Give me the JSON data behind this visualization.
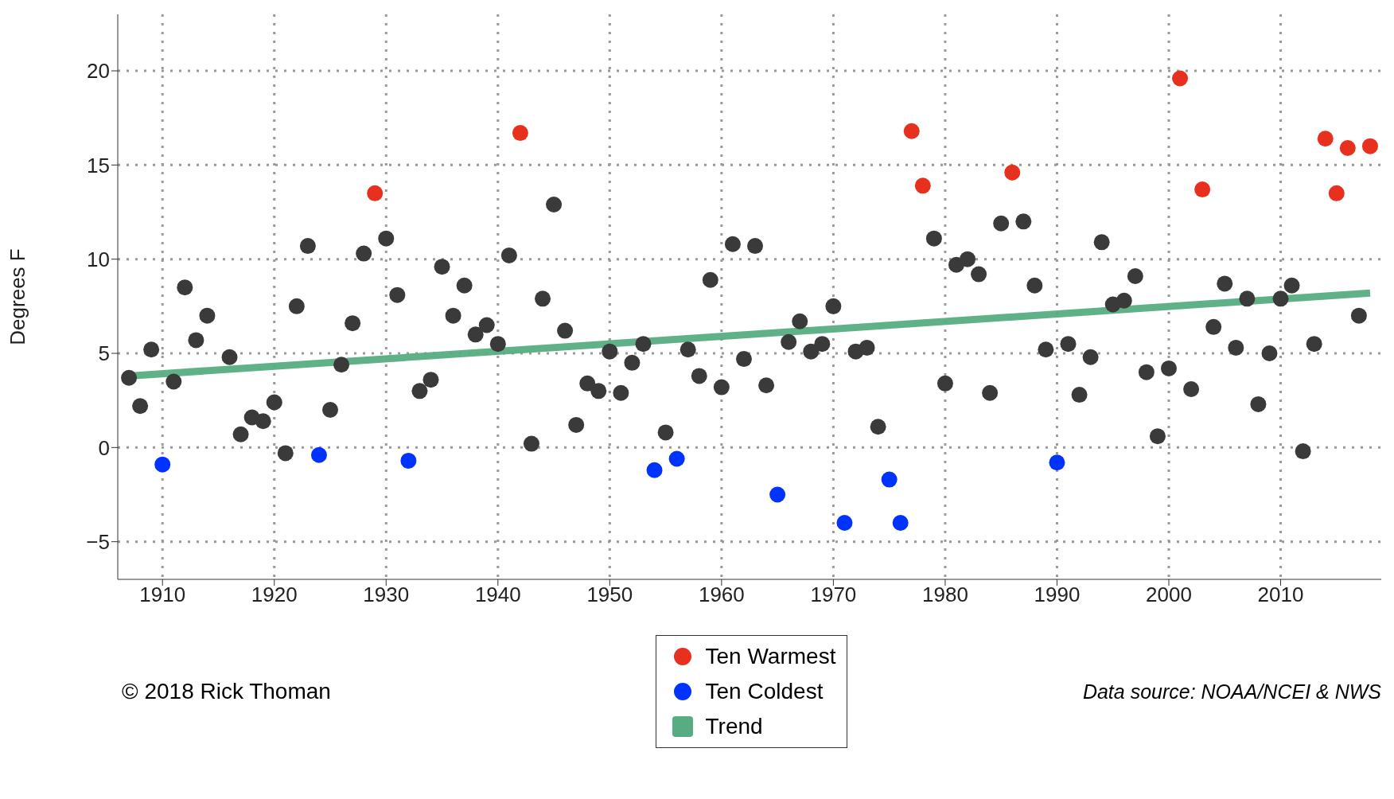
{
  "chart_data": {
    "type": "scatter",
    "ylabel": "Degrees F",
    "xlim": [
      1906,
      2019
    ],
    "xticks": [
      1910,
      1920,
      1930,
      1940,
      1950,
      1960,
      1970,
      1980,
      1990,
      2000,
      2010
    ],
    "ylim": [
      -7,
      23
    ],
    "yticks": [
      -5,
      0,
      5,
      10,
      15,
      20
    ],
    "grid": true,
    "legend": "bottom",
    "marker": "circle",
    "annotations": [
      "© 2018 Rick Thoman",
      "Data source: NOAA/NCEI & NWS"
    ],
    "series": [
      {
        "color": "#3a3a3a",
        "x": [
          1907,
          1908,
          1909,
          1911,
          1912,
          1913,
          1914,
          1916,
          1917,
          1918,
          1919,
          1920,
          1921,
          1922,
          1923,
          1925,
          1926,
          1927,
          1928,
          1930,
          1931,
          1933,
          1934,
          1935,
          1936,
          1937,
          1938,
          1939,
          1940,
          1941,
          1943,
          1944,
          1945,
          1946,
          1947,
          1948,
          1949,
          1950,
          1951,
          1952,
          1953,
          1955,
          1957,
          1958,
          1959,
          1960,
          1961,
          1962,
          1963,
          1964,
          1966,
          1967,
          1968,
          1969,
          1970,
          1972,
          1973,
          1974,
          1979,
          1980,
          1981,
          1982,
          1983,
          1984,
          1985,
          1987,
          1988,
          1989,
          1991,
          1992,
          1993,
          1994,
          1995,
          1996,
          1997,
          1998,
          1999,
          2000,
          2002,
          2004,
          2005,
          2006,
          2007,
          2008,
          2009,
          2010,
          2011,
          2012,
          2013,
          2017
        ],
        "values": [
          3.7,
          2.2,
          5.2,
          3.5,
          8.5,
          5.7,
          7.0,
          4.8,
          0.7,
          1.6,
          1.4,
          2.4,
          -0.3,
          7.5,
          10.7,
          2.0,
          4.4,
          6.6,
          10.3,
          11.1,
          8.1,
          3.0,
          3.6,
          9.6,
          7.0,
          8.6,
          6.0,
          6.5,
          5.5,
          10.2,
          0.2,
          7.9,
          12.9,
          6.2,
          1.2,
          3.4,
          3.0,
          5.1,
          2.9,
          4.5,
          5.5,
          0.8,
          5.2,
          3.8,
          8.9,
          3.2,
          10.8,
          4.7,
          10.7,
          3.3,
          5.6,
          6.7,
          5.1,
          5.5,
          7.5,
          5.1,
          5.3,
          1.1,
          11.1,
          3.4,
          9.7,
          10.0,
          9.2,
          2.9,
          11.9,
          12.0,
          8.6,
          5.2,
          5.5,
          2.8,
          4.8,
          10.9,
          7.6,
          7.8,
          9.1,
          4.0,
          0.6,
          4.2,
          3.1,
          6.4,
          8.7,
          5.3,
          7.9,
          2.3,
          5.0,
          7.9,
          8.6,
          -0.2,
          5.5,
          7.0
        ]
      },
      {
        "name": "Ten Warmest",
        "color": "#e8301e",
        "x": [
          1929,
          1942,
          1977,
          1978,
          1986,
          2001,
          2003,
          2014,
          2015,
          2016,
          2018
        ],
        "values": [
          13.5,
          16.7,
          16.8,
          13.9,
          14.6,
          19.6,
          13.7,
          16.4,
          13.5,
          15.9,
          16.0
        ]
      },
      {
        "name": "Ten Coldest",
        "color": "#0033ff",
        "x": [
          1910,
          1924,
          1932,
          1954,
          1956,
          1965,
          1971,
          1975,
          1976,
          1990
        ],
        "values": [
          -0.9,
          -0.4,
          -0.7,
          -1.2,
          -0.6,
          -2.5,
          -4.0,
          -1.7,
          -4.0,
          -0.8
        ]
      },
      {
        "name": "Trend",
        "type": "line",
        "color": "#57ad82",
        "marker": "none",
        "x": [
          1907,
          2018
        ],
        "values": [
          3.8,
          8.2
        ]
      }
    ]
  }
}
